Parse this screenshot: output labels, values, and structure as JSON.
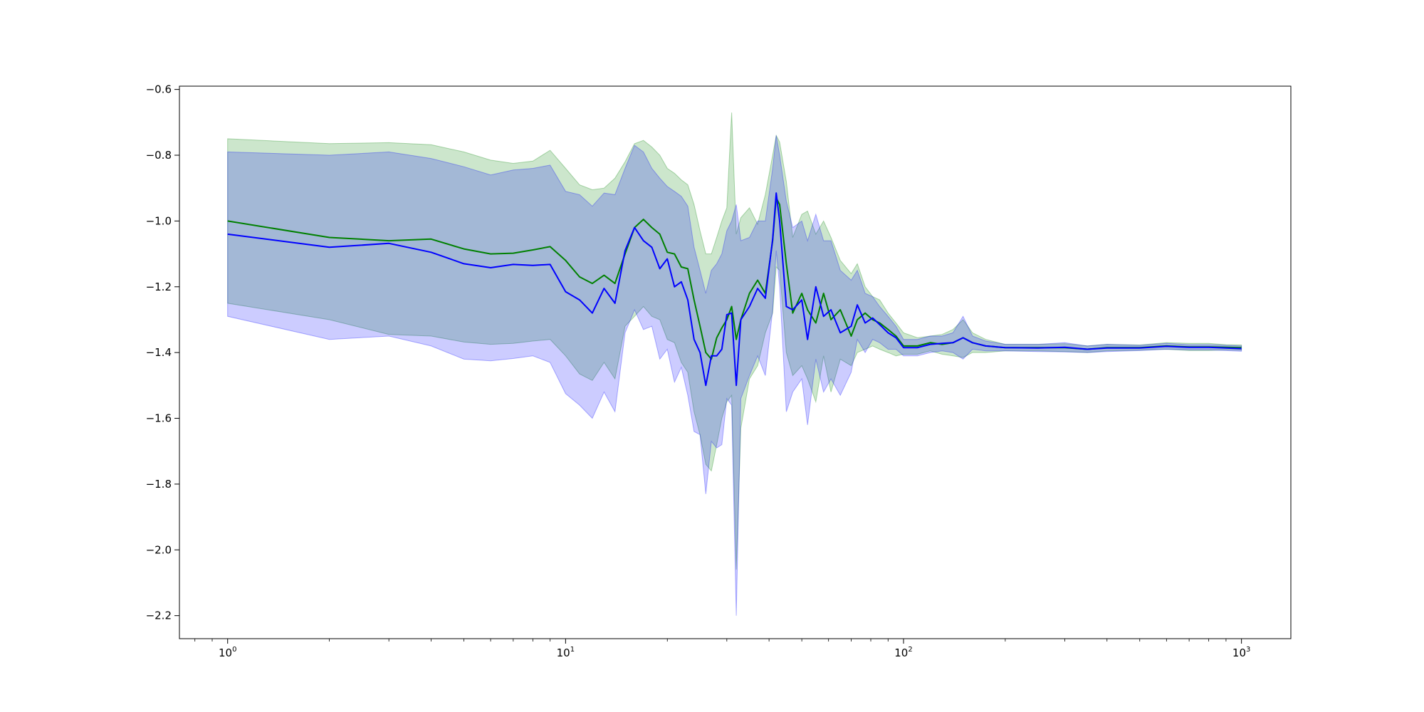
{
  "chart_data": {
    "type": "line",
    "x_scale": "log",
    "xlim": [
      0.72,
      1400
    ],
    "ylim": [
      -2.27,
      -0.59
    ],
    "grid": false,
    "legend": "none",
    "x_ticks": [
      {
        "value": 1,
        "base": "10",
        "exp": "0"
      },
      {
        "value": 10,
        "base": "10",
        "exp": "1"
      },
      {
        "value": 100,
        "base": "10",
        "exp": "2"
      },
      {
        "value": 1000,
        "base": "10",
        "exp": "3"
      }
    ],
    "y_ticks": [
      {
        "value": -0.6,
        "label": "−0.6"
      },
      {
        "value": -0.8,
        "label": "−0.8"
      },
      {
        "value": -1.0,
        "label": "−1.0"
      },
      {
        "value": -1.2,
        "label": "−1.2"
      },
      {
        "value": -1.4,
        "label": "−1.4"
      },
      {
        "value": -1.6,
        "label": "−1.6"
      },
      {
        "value": -1.8,
        "label": "−1.8"
      },
      {
        "value": -2.0,
        "label": "−2.0"
      },
      {
        "value": -2.2,
        "label": "−2.2"
      }
    ],
    "series": [
      {
        "color": "#008000",
        "band_color": "#008000",
        "band_opacity": 0.2,
        "x": [
          1,
          2,
          3,
          4,
          5,
          6,
          7,
          8,
          9,
          10,
          11,
          12,
          13,
          14,
          15,
          16,
          17,
          18,
          19,
          20,
          21,
          22,
          23,
          24,
          25,
          26,
          27,
          28,
          29,
          30,
          31,
          32,
          33,
          35,
          37,
          39,
          41,
          42,
          43,
          45,
          47,
          50,
          52,
          55,
          58,
          61,
          65,
          70,
          73,
          77,
          81,
          85,
          90,
          95,
          100,
          110,
          120,
          130,
          140,
          150,
          160,
          175,
          200,
          250,
          300,
          350,
          400,
          500,
          600,
          700,
          800,
          900,
          1000
        ],
        "y": [
          -1.0,
          -1.05,
          -1.06,
          -1.055,
          -1.085,
          -1.1,
          -1.098,
          -1.088,
          -1.078,
          -1.12,
          -1.17,
          -1.19,
          -1.165,
          -1.19,
          -1.1,
          -1.02,
          -0.995,
          -1.02,
          -1.04,
          -1.095,
          -1.1,
          -1.14,
          -1.145,
          -1.24,
          -1.32,
          -1.4,
          -1.42,
          -1.355,
          -1.325,
          -1.3,
          -1.26,
          -1.36,
          -1.3,
          -1.22,
          -1.18,
          -1.22,
          -1.06,
          -0.93,
          -0.95,
          -1.13,
          -1.28,
          -1.22,
          -1.27,
          -1.31,
          -1.22,
          -1.3,
          -1.27,
          -1.35,
          -1.3,
          -1.28,
          -1.3,
          -1.31,
          -1.33,
          -1.35,
          -1.38,
          -1.38,
          -1.37,
          -1.375,
          -1.37,
          -1.355,
          -1.37,
          -1.38,
          -1.385,
          -1.385,
          -1.385,
          -1.39,
          -1.385,
          -1.385,
          -1.38,
          -1.383,
          -1.383,
          -1.384,
          -1.385
        ],
        "upper": [
          -0.75,
          -0.765,
          -0.762,
          -0.768,
          -0.79,
          -0.815,
          -0.825,
          -0.818,
          -0.785,
          -0.84,
          -0.89,
          -0.905,
          -0.9,
          -0.87,
          -0.82,
          -0.765,
          -0.755,
          -0.775,
          -0.8,
          -0.84,
          -0.855,
          -0.875,
          -0.89,
          -0.95,
          -1.03,
          -1.1,
          -1.1,
          -1.05,
          -1.0,
          -0.96,
          -0.67,
          -1.04,
          -0.99,
          -0.96,
          -1.01,
          -0.92,
          -0.8,
          -0.74,
          -0.76,
          -0.88,
          -1.05,
          -0.98,
          -0.97,
          -1.04,
          -1.0,
          -1.05,
          -1.12,
          -1.16,
          -1.13,
          -1.2,
          -1.23,
          -1.24,
          -1.28,
          -1.31,
          -1.34,
          -1.355,
          -1.35,
          -1.345,
          -1.33,
          -1.3,
          -1.34,
          -1.36,
          -1.375,
          -1.375,
          -1.373,
          -1.38,
          -1.375,
          -1.377,
          -1.37,
          -1.372,
          -1.372,
          -1.376,
          -1.377
        ],
        "lower": [
          -1.25,
          -1.3,
          -1.345,
          -1.35,
          -1.368,
          -1.375,
          -1.372,
          -1.365,
          -1.36,
          -1.41,
          -1.465,
          -1.485,
          -1.43,
          -1.48,
          -1.32,
          -1.29,
          -1.26,
          -1.29,
          -1.3,
          -1.36,
          -1.37,
          -1.43,
          -1.46,
          -1.58,
          -1.65,
          -1.74,
          -1.76,
          -1.68,
          -1.6,
          -1.55,
          -1.53,
          -2.06,
          -1.63,
          -1.48,
          -1.44,
          -1.34,
          -1.28,
          -1.14,
          -1.15,
          -1.4,
          -1.47,
          -1.44,
          -1.48,
          -1.55,
          -1.41,
          -1.52,
          -1.42,
          -1.44,
          -1.4,
          -1.39,
          -1.38,
          -1.39,
          -1.4,
          -1.41,
          -1.405,
          -1.405,
          -1.395,
          -1.405,
          -1.41,
          -1.415,
          -1.4,
          -1.4,
          -1.395,
          -1.395,
          -1.397,
          -1.4,
          -1.395,
          -1.393,
          -1.39,
          -1.394,
          -1.394,
          -1.392,
          -1.393
        ]
      },
      {
        "color": "#0000ff",
        "band_color": "#0000ff",
        "band_opacity": 0.2,
        "x": [
          1,
          2,
          3,
          4,
          5,
          6,
          7,
          8,
          9,
          10,
          11,
          12,
          13,
          14,
          15,
          16,
          17,
          18,
          19,
          20,
          21,
          22,
          23,
          24,
          25,
          26,
          27,
          28,
          29,
          30,
          31,
          32,
          33,
          35,
          37,
          39,
          41,
          42,
          43,
          45,
          47,
          50,
          52,
          55,
          58,
          61,
          65,
          70,
          73,
          77,
          81,
          85,
          90,
          95,
          100,
          110,
          120,
          130,
          140,
          150,
          160,
          175,
          200,
          250,
          300,
          350,
          400,
          500,
          600,
          700,
          800,
          900,
          1000
        ],
        "y": [
          -1.04,
          -1.08,
          -1.068,
          -1.095,
          -1.13,
          -1.142,
          -1.132,
          -1.135,
          -1.132,
          -1.215,
          -1.24,
          -1.28,
          -1.205,
          -1.25,
          -1.09,
          -1.02,
          -1.06,
          -1.08,
          -1.145,
          -1.115,
          -1.2,
          -1.185,
          -1.24,
          -1.36,
          -1.4,
          -1.5,
          -1.41,
          -1.41,
          -1.39,
          -1.285,
          -1.28,
          -1.5,
          -1.3,
          -1.26,
          -1.205,
          -1.235,
          -1.055,
          -0.915,
          -1.0,
          -1.26,
          -1.27,
          -1.24,
          -1.36,
          -1.2,
          -1.29,
          -1.27,
          -1.34,
          -1.32,
          -1.255,
          -1.31,
          -1.295,
          -1.315,
          -1.34,
          -1.355,
          -1.385,
          -1.385,
          -1.375,
          -1.372,
          -1.37,
          -1.355,
          -1.37,
          -1.38,
          -1.385,
          -1.386,
          -1.384,
          -1.39,
          -1.386,
          -1.386,
          -1.381,
          -1.384,
          -1.384,
          -1.386,
          -1.388
        ],
        "upper": [
          -0.79,
          -0.8,
          -0.79,
          -0.81,
          -0.835,
          -0.86,
          -0.845,
          -0.84,
          -0.83,
          -0.91,
          -0.92,
          -0.955,
          -0.915,
          -0.92,
          -0.84,
          -0.77,
          -0.79,
          -0.84,
          -0.87,
          -0.895,
          -0.91,
          -0.925,
          -0.955,
          -1.08,
          -1.15,
          -1.22,
          -1.15,
          -1.13,
          -1.1,
          -1.03,
          -1.0,
          -0.95,
          -1.06,
          -1.05,
          -1.0,
          -1.0,
          -0.84,
          -0.74,
          -0.8,
          -0.94,
          -1.02,
          -1.0,
          -1.06,
          -0.98,
          -1.06,
          -1.06,
          -1.15,
          -1.18,
          -1.15,
          -1.22,
          -1.23,
          -1.26,
          -1.29,
          -1.32,
          -1.36,
          -1.36,
          -1.35,
          -1.35,
          -1.34,
          -1.29,
          -1.35,
          -1.365,
          -1.375,
          -1.375,
          -1.37,
          -1.38,
          -1.375,
          -1.378,
          -1.372,
          -1.376,
          -1.376,
          -1.378,
          -1.38
        ],
        "lower": [
          -1.29,
          -1.36,
          -1.35,
          -1.38,
          -1.42,
          -1.425,
          -1.418,
          -1.41,
          -1.43,
          -1.525,
          -1.56,
          -1.6,
          -1.52,
          -1.58,
          -1.34,
          -1.27,
          -1.33,
          -1.32,
          -1.42,
          -1.39,
          -1.49,
          -1.445,
          -1.53,
          -1.64,
          -1.65,
          -1.83,
          -1.67,
          -1.69,
          -1.68,
          -1.54,
          -1.56,
          -2.2,
          -1.54,
          -1.47,
          -1.41,
          -1.47,
          -1.27,
          -1.09,
          -1.2,
          -1.58,
          -1.52,
          -1.48,
          -1.62,
          -1.42,
          -1.52,
          -1.48,
          -1.53,
          -1.46,
          -1.36,
          -1.4,
          -1.36,
          -1.37,
          -1.39,
          -1.39,
          -1.41,
          -1.41,
          -1.4,
          -1.395,
          -1.4,
          -1.42,
          -1.39,
          -1.395,
          -1.395,
          -1.397,
          -1.398,
          -1.4,
          -1.397,
          -1.394,
          -1.39,
          -1.392,
          -1.392,
          -1.394,
          -1.396
        ]
      }
    ]
  }
}
